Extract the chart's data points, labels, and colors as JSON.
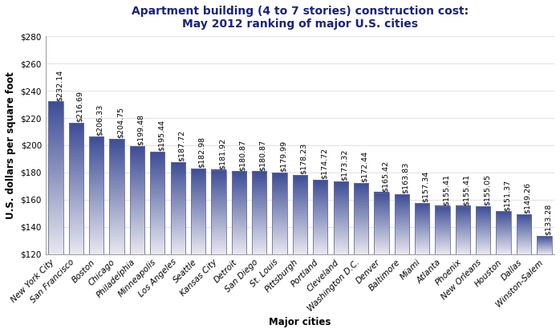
{
  "title": "Apartment building (4 to 7 stories) construction cost:\nMay 2012 ranking of major U.S. cities",
  "xlabel": "Major cities",
  "ylabel": "U.S. dollars per square foot",
  "ylim": [
    120,
    280
  ],
  "yticks": [
    120,
    140,
    160,
    180,
    200,
    220,
    240,
    260,
    280
  ],
  "ytick_labels": [
    "$120",
    "$140",
    "$160",
    "$180",
    "$200",
    "$220",
    "$240",
    "$260",
    "$280"
  ],
  "cities": [
    "New York City",
    "San Francisco",
    "Boston",
    "Chicago",
    "Philadelphia",
    "Minneapolis",
    "Los Angeles",
    "Seattle",
    "Kansas City",
    "Detroit",
    "San Diego",
    "St. Louis",
    "Pittsburgh",
    "Portland",
    "Cleveland",
    "Washington D.C.",
    "Denver",
    "Baltimore",
    "Miami",
    "Atlanta",
    "Phoenix",
    "New Orleans",
    "Houston",
    "Dallas",
    "Winston-Salem"
  ],
  "values": [
    232.14,
    216.69,
    206.33,
    204.75,
    199.48,
    195.44,
    187.72,
    182.98,
    181.92,
    180.87,
    180.87,
    179.99,
    178.23,
    174.72,
    173.32,
    172.44,
    165.42,
    163.83,
    157.34,
    155.41,
    155.41,
    155.05,
    151.37,
    149.26,
    133.28
  ],
  "bar_color_top": "#3d4d96",
  "bar_color_bottom": "#e8e8f0",
  "title_color": "#1a237e",
  "title_fontsize": 10,
  "label_fontsize": 8.5,
  "tick_fontsize": 7.5,
  "value_fontsize": 6.8,
  "background_color": "#ffffff",
  "grid_color": "#dddddd",
  "bar_edge_color": "#7070a0",
  "bar_width": 0.72
}
